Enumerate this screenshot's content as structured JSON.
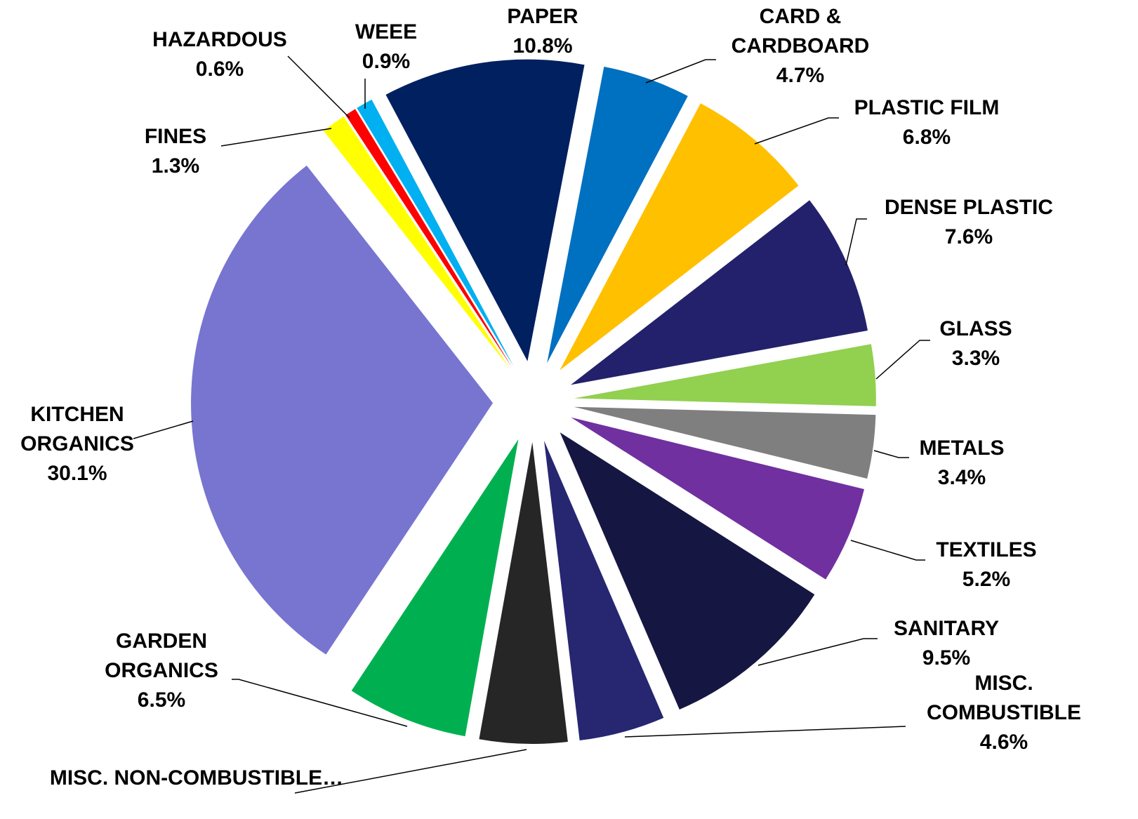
{
  "chart_data": {
    "type": "pie",
    "categories": [
      "PAPER",
      "CARD & CARDBOARD",
      "PLASTIC FILM",
      "DENSE PLASTIC",
      "GLASS",
      "METALS",
      "TEXTILES",
      "SANITARY",
      "MISC. COMBUSTIBLE",
      "MISC. NON-COMBUSTIBLE…",
      "GARDEN ORGANICS",
      "KITCHEN ORGANICS",
      "FINES",
      "HAZARDOUS",
      "WEEE"
    ],
    "values": [
      10.8,
      4.7,
      6.8,
      7.6,
      3.3,
      3.4,
      5.2,
      9.5,
      4.6,
      4.7,
      6.5,
      30.1,
      1.3,
      0.6,
      0.9
    ],
    "value_labels": [
      "10.8%",
      "4.7%",
      "6.8%",
      "7.6%",
      "3.3%",
      "3.4%",
      "5.2%",
      "9.5%",
      "4.6%",
      null,
      "6.5%",
      "30.1%",
      "1.3%",
      "0.6%",
      "0.9%"
    ],
    "colors": [
      "#002060",
      "#0070c0",
      "#ffc000",
      "#23216b",
      "#92d050",
      "#7f7f7f",
      "#7030a0",
      "#161642",
      "#262671",
      "#262626",
      "#00b050",
      "#7775d0",
      "#ffff00",
      "#ff0000",
      "#00b0f0"
    ]
  }
}
